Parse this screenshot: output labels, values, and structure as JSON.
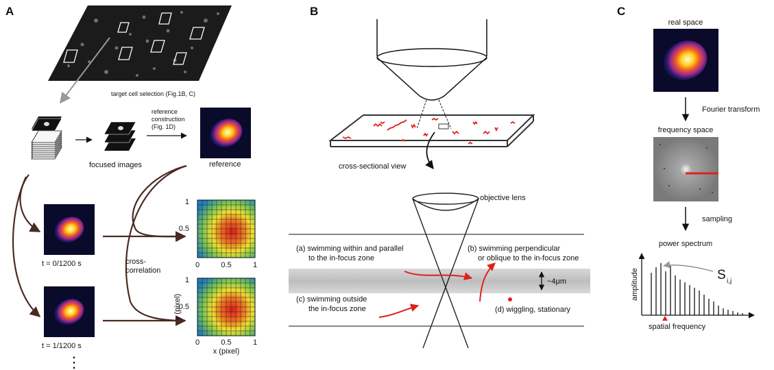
{
  "panels": {
    "a": "A",
    "b": "B",
    "c": "C"
  },
  "panel_a": {
    "target_selection": "target cell selection (Fig.1B, C)",
    "focused_images": "focused images",
    "reference_construction_line1": "reference",
    "reference_construction_line2": "construction",
    "reference_construction_line3": "(Fig. 1D)",
    "reference": "reference",
    "t0": "t = 0/1200 s",
    "t1": "t = 1/1200 s",
    "cross_corr_line1": "cross-",
    "cross_corr_line2": "correlation",
    "xlabel": "x (pixel)",
    "ylabel": "y (pixel)",
    "ticks_x": [
      "0",
      "0.5",
      "1"
    ],
    "ticks_y_top": [
      "1",
      "0.5"
    ],
    "ticks_y_bottom": [
      "1",
      "0.5"
    ],
    "ellipsis": "⋮"
  },
  "panel_b": {
    "cross_section": "cross-sectional view",
    "objective": "objective lens",
    "a_line1": "(a) swimming within and parallel",
    "a_line2": "to the in-focus zone",
    "b_line1": "(b) swimming perpendicular",
    "b_line2": "or oblique to the in-focus zone",
    "c_line1": "(c) swimming outside",
    "c_line2": "the in-focus zone",
    "d": "(d) wiggling, stationary",
    "thickness": "~4μm"
  },
  "panel_c": {
    "real_space": "real space",
    "fourier": "Fourier transform",
    "frequency_space": "frequency space",
    "sampling": "sampling",
    "power_spectrum": "power spectrum",
    "amplitude": "amplitude",
    "spatial_frequency": "spatial frequency",
    "s_main": "S",
    "s_sub": "i,j"
  },
  "colors": {
    "red": "#e0201a",
    "gray_zone": "#c8c8c8",
    "arrow_dark": "#4a2a22"
  }
}
